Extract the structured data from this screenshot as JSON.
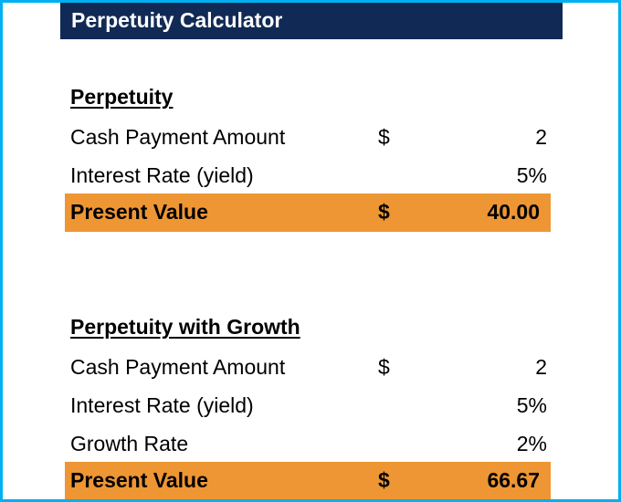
{
  "title": "Perpetuity Calculator",
  "perpetuity": {
    "heading": "Perpetuity",
    "rows": [
      {
        "label": "Cash Payment Amount",
        "currency": "$",
        "value": "2"
      },
      {
        "label": "Interest Rate (yield)",
        "currency": "",
        "value": "5%"
      }
    ],
    "total": {
      "label": "Present Value",
      "currency": "$",
      "value": "40.00"
    }
  },
  "growth": {
    "heading": "Perpetuity with Growth",
    "rows": [
      {
        "label": "Cash Payment Amount",
        "currency": "$",
        "value": "2"
      },
      {
        "label": "Interest Rate (yield)",
        "currency": "",
        "value": "5%"
      },
      {
        "label": "Growth Rate",
        "currency": "",
        "value": "2%"
      }
    ],
    "total": {
      "label": "Present Value",
      "currency": "$",
      "value": "66.67"
    }
  },
  "colors": {
    "title_background": "#112a55",
    "total_background": "#ee9633",
    "frame_border": "#00b0f0"
  }
}
